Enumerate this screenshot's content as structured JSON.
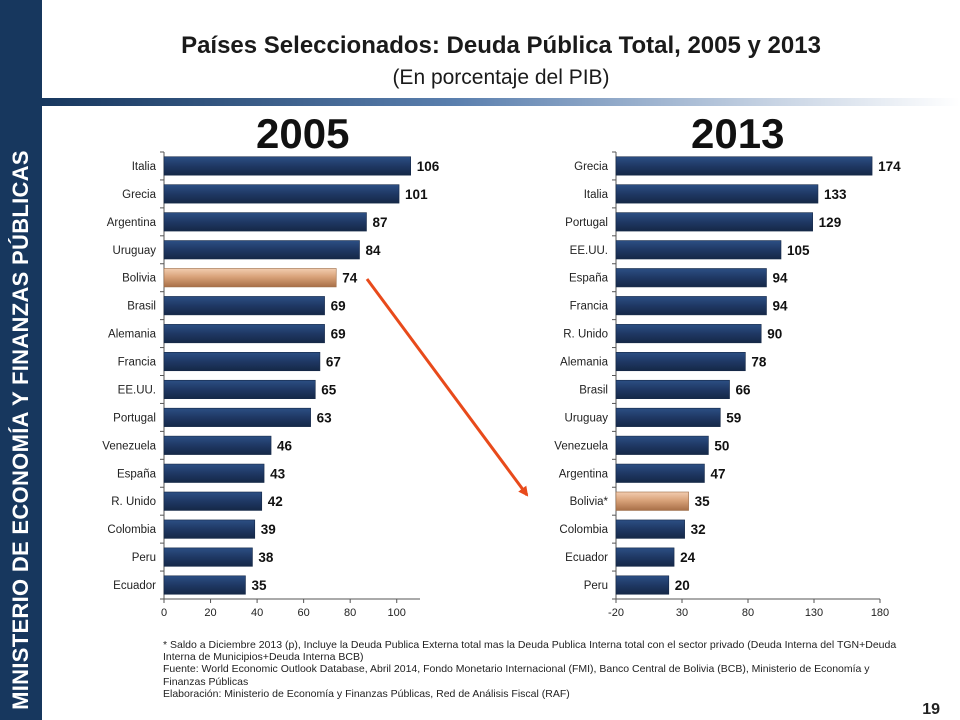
{
  "sidebar": {
    "text": "MINISTERIO DE ECONOMÍA Y FINANZAS PÚBLICAS"
  },
  "header": {
    "title": "Países Seleccionados: Deuda Pública Total, 2005 y 2013",
    "subtitle": "(En porcentaje del PIB)"
  },
  "colors": {
    "bar": "#1f3864",
    "highlight": "#d9a37a",
    "arrow": "#e84a1b",
    "sidebar": "#17375e"
  },
  "chart_data": [
    {
      "type": "bar",
      "orientation": "horizontal",
      "title": "2005",
      "categories": [
        "Italia",
        "Grecia",
        "Argentina",
        "Uruguay",
        "Bolivia",
        "Brasil",
        "Alemania",
        "Francia",
        "EE.UU.",
        "Portugal",
        "Venezuela",
        "España",
        "R. Unido",
        "Colombia",
        "Peru",
        "Ecuador"
      ],
      "values": [
        106,
        101,
        87,
        84,
        74,
        69,
        69,
        67,
        65,
        63,
        46,
        43,
        42,
        39,
        38,
        35
      ],
      "xlim": [
        0,
        110
      ],
      "xticks": [
        "0",
        "20",
        "40",
        "60",
        "80",
        "100"
      ],
      "highlight": "Bolivia"
    },
    {
      "type": "bar",
      "orientation": "horizontal",
      "title": "2013",
      "categories": [
        "Grecia",
        "Italia",
        "Portugal",
        "EE.UU.",
        "España",
        "Francia",
        "R. Unido",
        "Alemania",
        "Brasil",
        "Uruguay",
        "Venezuela",
        "Argentina",
        "Bolivia*",
        "Colombia",
        "Ecuador",
        "Peru"
      ],
      "values": [
        174,
        133,
        129,
        105,
        94,
        94,
        90,
        78,
        66,
        59,
        50,
        47,
        35,
        32,
        24,
        20
      ],
      "xlim": [
        -20,
        180
      ],
      "xticks": [
        "-20",
        "30",
        "80",
        "130",
        "180"
      ],
      "highlight": "Bolivia*"
    }
  ],
  "footnote": [
    "* Saldo a Diciembre 2013 (p), Incluye la Deuda Publica Externa total mas la Deuda Publica Interna total con el sector privado (Deuda Interna del TGN+Deuda Interna de Municipios+Deuda Interna BCB)",
    "Fuente: World Economic Outlook Database, Abril 2014, Fondo Monetario Internacional (FMI), Banco Central de Bolivia (BCB), Ministerio de Economía y Finanzas Públicas",
    "Elaboración: Ministerio de Economía y Finanzas Públicas, Red de Análisis Fiscal (RAF)"
  ],
  "page_number": "19"
}
